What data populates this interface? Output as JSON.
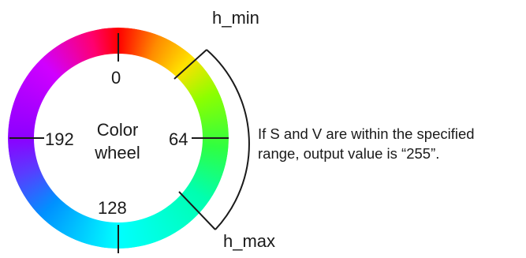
{
  "diagram": {
    "title_lines": [
      "Color",
      "wheel"
    ],
    "hue_ticks": [
      "0",
      "64",
      "128",
      "192"
    ],
    "range_labels": {
      "min": "h_min",
      "max": "h_max"
    },
    "note_lines": [
      "If S and V are within the specified",
      "range, output value is “255”."
    ]
  },
  "colors": {
    "line": "#1a1a1a",
    "text": "#1a1a1a"
  }
}
